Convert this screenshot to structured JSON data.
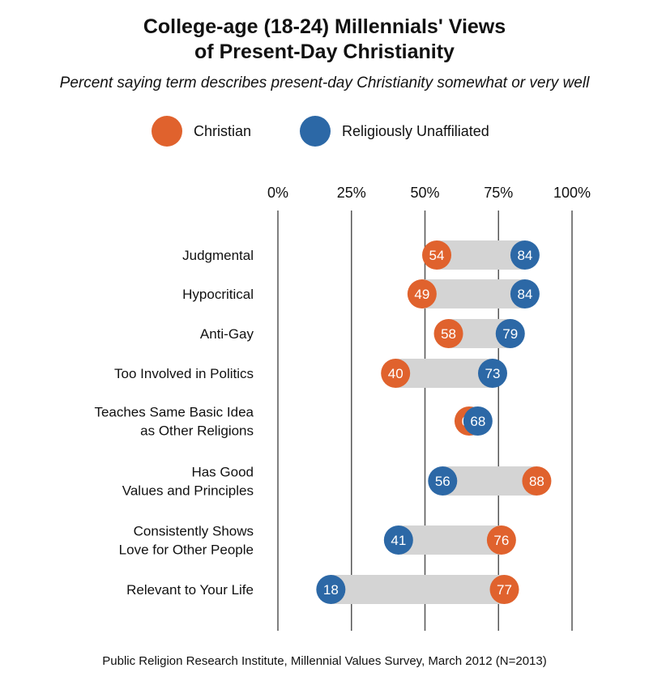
{
  "title_line1": "College-age (18-24) Millennials' Views",
  "title_line2": "of Present-Day Christianity",
  "subtitle": "Percent saying term describes present-day Christianity somewhat or very well",
  "source": "Public Religion Research Institute, Millennial Values Survey, March 2012 (N=2013)",
  "colors": {
    "christian": "#E0622D",
    "unaffiliated": "#2C68A6",
    "bar": "#D4D4D4",
    "grid": "#555555"
  },
  "chart_data": {
    "type": "dot-range",
    "title": "College-age (18-24) Millennials' Views of Present-Day Christianity",
    "subtitle": "Percent saying term describes present-day Christianity somewhat or very well",
    "xlim": [
      0,
      100
    ],
    "x_ticks": [
      "0%",
      "25%",
      "50%",
      "75%",
      "100%"
    ],
    "x_tick_values": [
      0,
      25,
      50,
      75,
      100
    ],
    "legend_placement": "top",
    "grid": true,
    "series": [
      {
        "name": "Christian",
        "color": "#E0622D"
      },
      {
        "name": "Religiously Unaffiliated",
        "color": "#2C68A6"
      }
    ],
    "categories": [
      {
        "label": [
          "Judgmental"
        ],
        "christian": 54,
        "unaffiliated": 84
      },
      {
        "label": [
          "Hypocritical"
        ],
        "christian": 49,
        "unaffiliated": 84
      },
      {
        "label": [
          "Anti-Gay"
        ],
        "christian": 58,
        "unaffiliated": 79
      },
      {
        "label": [
          "Too Involved in Politics"
        ],
        "christian": 40,
        "unaffiliated": 73
      },
      {
        "label": [
          "Teaches Same Basic Idea",
          "as Other Religions"
        ],
        "christian": 65,
        "unaffiliated": 68
      },
      {
        "label": [
          "Has Good",
          "Values and Principles"
        ],
        "christian": 88,
        "unaffiliated": 56
      },
      {
        "label": [
          "Consistently Shows",
          "Love for Other People"
        ],
        "christian": 76,
        "unaffiliated": 41
      },
      {
        "label": [
          "Relevant to Your Life"
        ],
        "christian": 77,
        "unaffiliated": 18
      }
    ]
  }
}
